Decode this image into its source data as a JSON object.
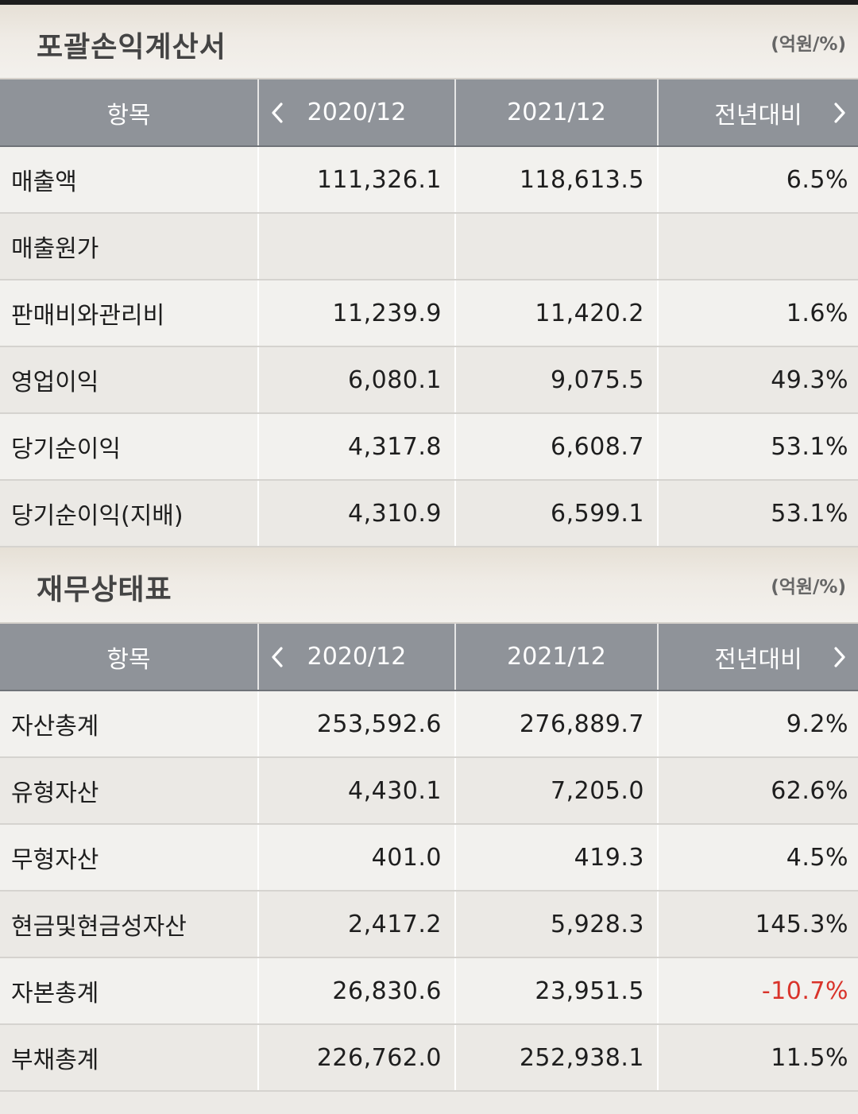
{
  "income_statement": {
    "title": "포괄손익계산서",
    "unit": "(억원/%)",
    "headers": {
      "item": "항목",
      "col1": "2020/12",
      "col2": "2021/12",
      "col3": "전년대비"
    },
    "rows": [
      {
        "label": "매출액",
        "v2020": "111,326.1",
        "v2021": "118,613.5",
        "yoy": "6.5%"
      },
      {
        "label": "매출원가",
        "v2020": "",
        "v2021": "",
        "yoy": ""
      },
      {
        "label": "판매비와관리비",
        "v2020": "11,239.9",
        "v2021": "11,420.2",
        "yoy": "1.6%"
      },
      {
        "label": "영업이익",
        "v2020": "6,080.1",
        "v2021": "9,075.5",
        "yoy": "49.3%"
      },
      {
        "label": "당기순이익",
        "v2020": "4,317.8",
        "v2021": "6,608.7",
        "yoy": "53.1%"
      },
      {
        "label": "당기순이익(지배)",
        "v2020": "4,310.9",
        "v2021": "6,599.1",
        "yoy": "53.1%"
      }
    ]
  },
  "balance_sheet": {
    "title": "재무상태표",
    "unit": "(억원/%)",
    "headers": {
      "item": "항목",
      "col1": "2020/12",
      "col2": "2021/12",
      "col3": "전년대비"
    },
    "rows": [
      {
        "label": "자산총계",
        "v2020": "253,592.6",
        "v2021": "276,889.7",
        "yoy": "9.2%"
      },
      {
        "label": "유형자산",
        "v2020": "4,430.1",
        "v2021": "7,205.0",
        "yoy": "62.6%"
      },
      {
        "label": "무형자산",
        "v2020": "401.0",
        "v2021": "419.3",
        "yoy": "4.5%"
      },
      {
        "label": "현금및현금성자산",
        "v2020": "2,417.2",
        "v2021": "5,928.3",
        "yoy": "145.3%"
      },
      {
        "label": "자본총계",
        "v2020": "26,830.6",
        "v2021": "23,951.5",
        "yoy": "-10.7%"
      },
      {
        "label": "부채총계",
        "v2020": "226,762.0",
        "v2021": "252,938.1",
        "yoy": "11.5%"
      }
    ]
  },
  "icons": {
    "prev": "chevron-left-icon",
    "next": "chevron-right-icon"
  },
  "colors": {
    "header_bg": "#8f9399",
    "negative": "#d9332a"
  }
}
